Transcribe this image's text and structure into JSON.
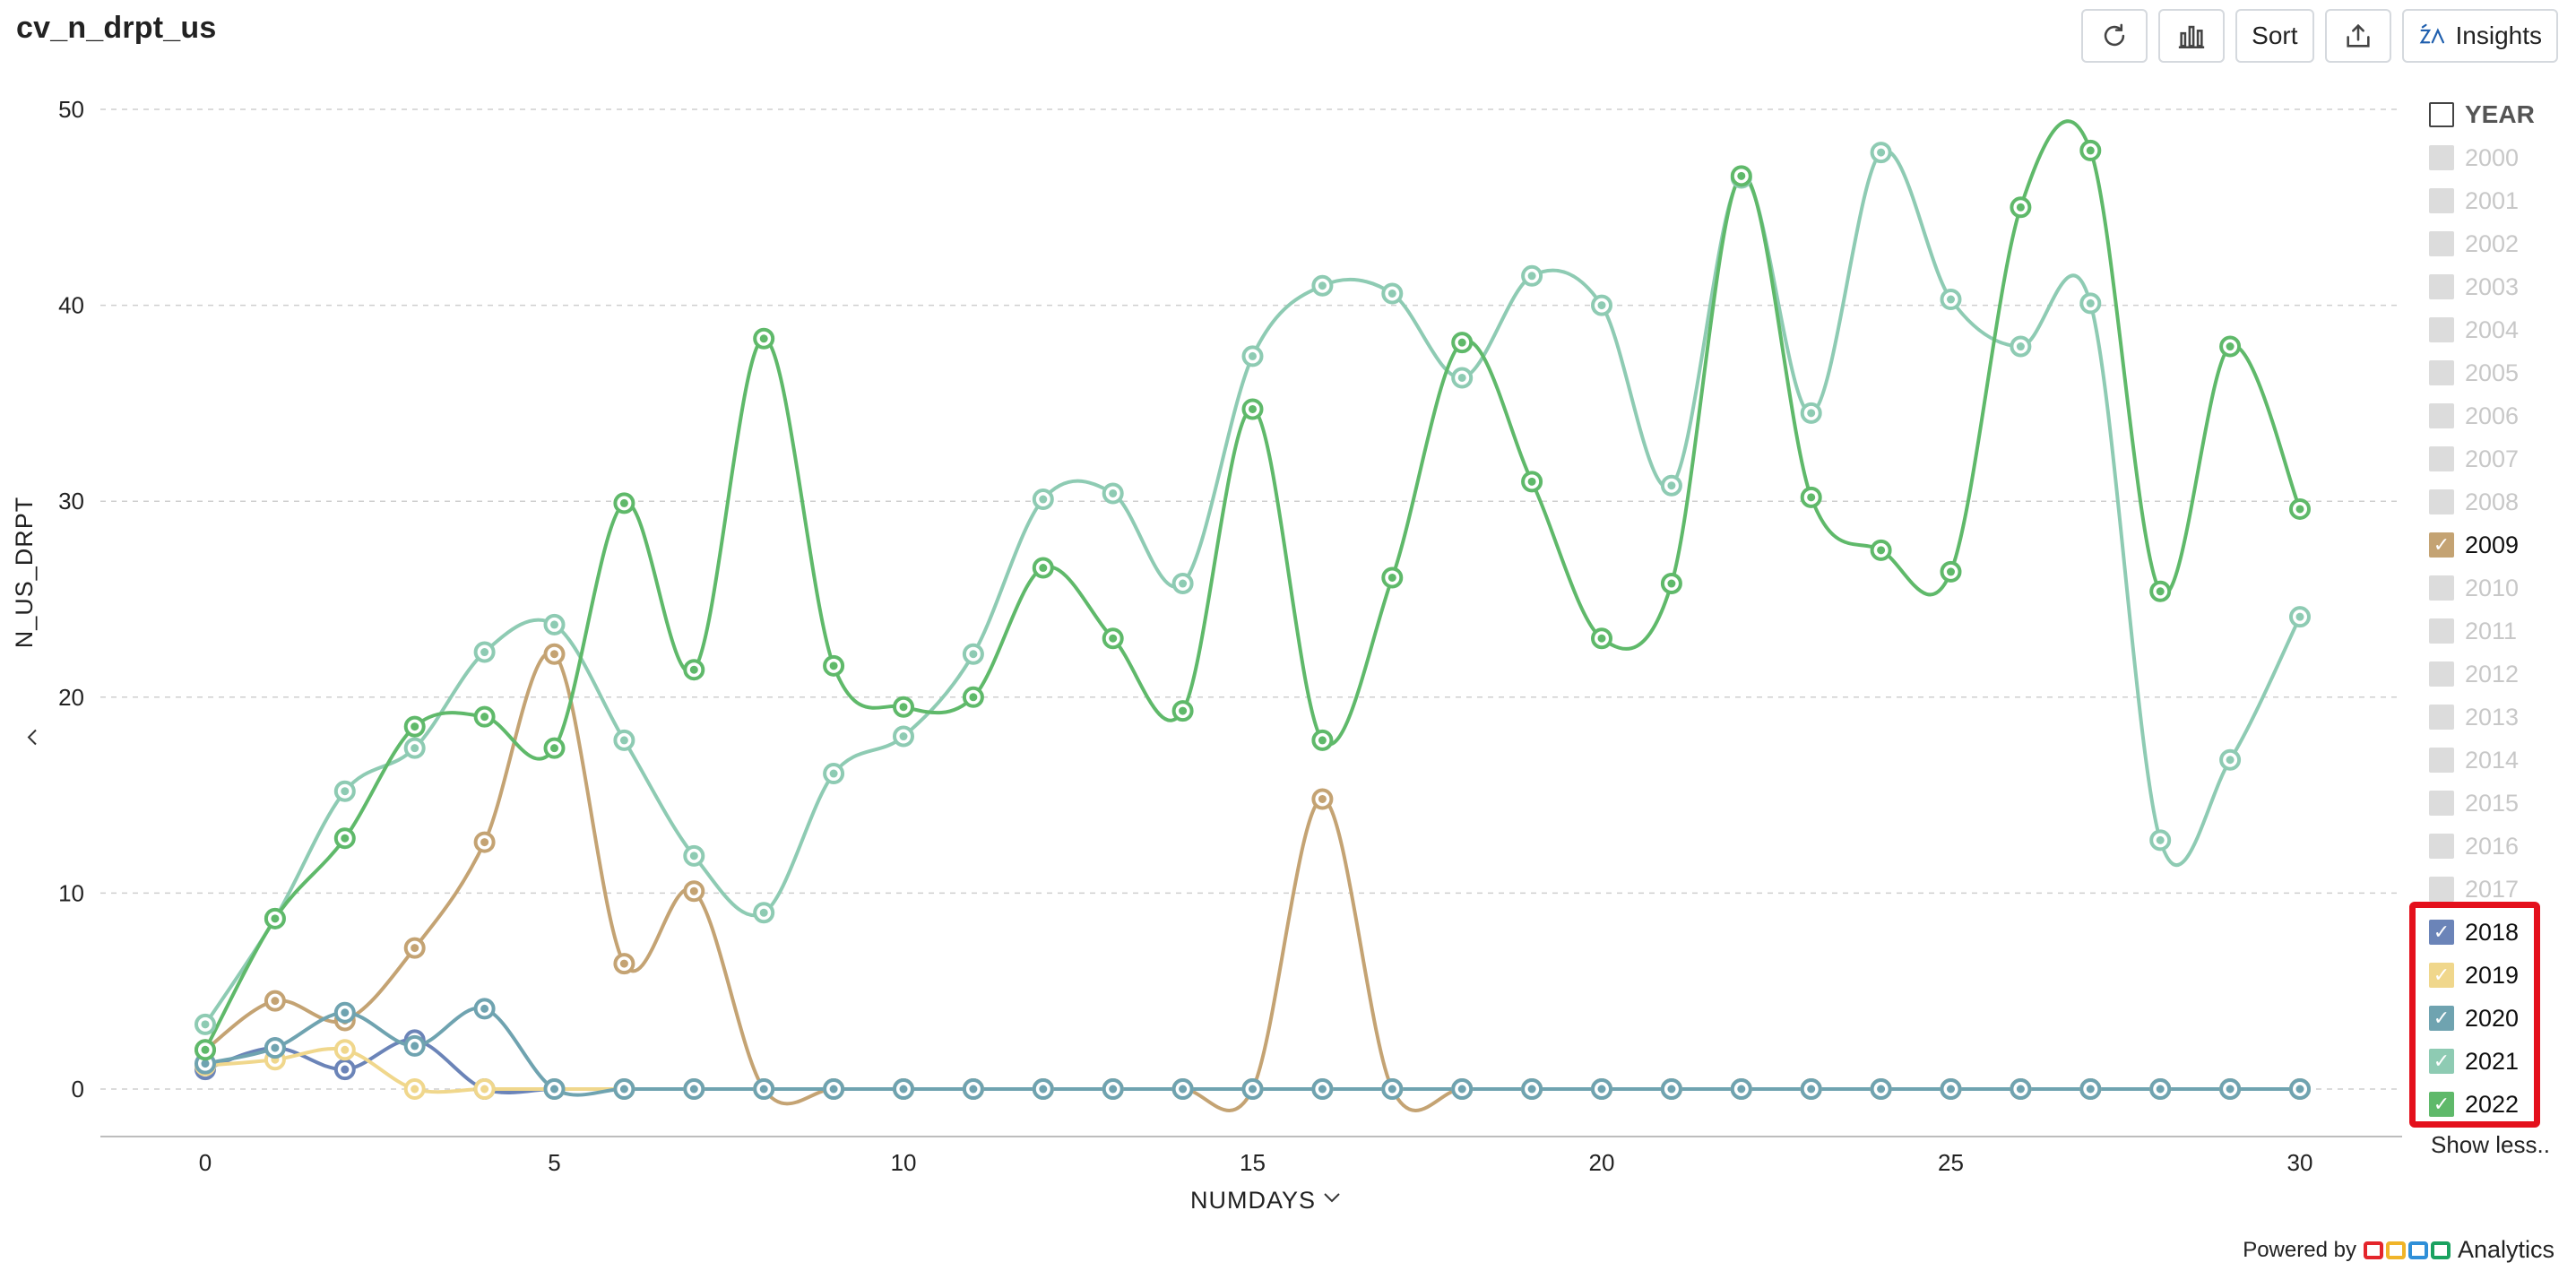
{
  "header": {
    "title": "cv_n_drpt_us",
    "buttons": {
      "sort_label": "Sort",
      "insights_label": "Insights"
    }
  },
  "icons": [
    "refresh-icon",
    "bar-chart-icon",
    "export-icon",
    "insights-icon",
    "chevron-down-icon",
    "checkmark-icon"
  ],
  "chart_data": {
    "type": "line",
    "xlabel": "NUMDAYS",
    "ylabel": "N_US_DRPT",
    "xlim": [
      0,
      30
    ],
    "ylim": [
      0,
      50
    ],
    "x_ticks": [
      0,
      5,
      10,
      15,
      20,
      25,
      30
    ],
    "y_ticks": [
      0,
      10,
      20,
      30,
      40,
      50
    ],
    "grid": true,
    "legend_placement": "right",
    "x": [
      0,
      1,
      2,
      3,
      4,
      5,
      6,
      7,
      8,
      9,
      10,
      11,
      12,
      13,
      14,
      15,
      16,
      17,
      18,
      19,
      20,
      21,
      22,
      23,
      24,
      25,
      26,
      27,
      28,
      29,
      30
    ],
    "series": [
      {
        "name": "2009",
        "color": "#c4a373",
        "values": [
          2,
          4.5,
          3.5,
          7.2,
          12.6,
          22.2,
          6.4,
          10.1,
          0,
          0,
          0,
          0,
          0,
          0,
          0,
          0,
          14.8,
          0,
          0,
          0,
          0,
          0,
          0,
          0,
          0,
          0,
          0,
          0,
          0,
          0,
          0
        ]
      },
      {
        "name": "2018",
        "color": "#6b84b8",
        "values": [
          1,
          2.1,
          1,
          2.5,
          0,
          0,
          0,
          0,
          0,
          0,
          0,
          0,
          0,
          0,
          0,
          0,
          0,
          0,
          0,
          0,
          0,
          0,
          0,
          0,
          0,
          0,
          0,
          0,
          0,
          0,
          0
        ]
      },
      {
        "name": "2019",
        "color": "#f0d78c",
        "values": [
          1.2,
          1.5,
          2,
          0,
          0,
          0,
          0,
          0,
          0,
          0,
          0,
          0,
          0,
          0,
          0,
          0,
          0,
          0,
          0,
          0,
          0,
          0,
          0,
          0,
          0,
          0,
          0,
          0,
          0,
          0,
          0
        ]
      },
      {
        "name": "2020",
        "color": "#6fa3b0",
        "values": [
          1.3,
          2.1,
          3.9,
          2.2,
          4.1,
          0,
          0,
          0,
          0,
          0,
          0,
          0,
          0,
          0,
          0,
          0,
          0,
          0,
          0,
          0,
          0,
          0,
          0,
          0,
          0,
          0,
          0,
          0,
          0,
          0,
          0
        ]
      },
      {
        "name": "2021",
        "color": "#8ecbb3",
        "values": [
          3.3,
          8.7,
          15.2,
          17.4,
          22.3,
          23.7,
          17.8,
          11.9,
          9,
          16.1,
          18,
          22.2,
          30.1,
          30.4,
          25.8,
          37.4,
          41,
          40.6,
          36.3,
          41.5,
          40,
          30.8,
          46.5,
          34.5,
          47.8,
          40.3,
          37.9,
          40.1,
          12.7,
          16.8,
          24.1
        ]
      },
      {
        "name": "2022",
        "color": "#5fb96a",
        "values": [
          2,
          8.7,
          12.8,
          18.5,
          19,
          17.4,
          29.9,
          21.4,
          38.3,
          21.6,
          19.5,
          20,
          26.6,
          23,
          19.3,
          34.7,
          17.8,
          26.1,
          38.1,
          31,
          23,
          25.8,
          46.6,
          30.2,
          27.5,
          26.4,
          45,
          47.9,
          25.4,
          37.9,
          29.6
        ]
      }
    ]
  },
  "legend": {
    "header": "YEAR",
    "items": [
      {
        "label": "2000",
        "checked": false,
        "color": ""
      },
      {
        "label": "2001",
        "checked": false,
        "color": ""
      },
      {
        "label": "2002",
        "checked": false,
        "color": ""
      },
      {
        "label": "2003",
        "checked": false,
        "color": ""
      },
      {
        "label": "2004",
        "checked": false,
        "color": ""
      },
      {
        "label": "2005",
        "checked": false,
        "color": ""
      },
      {
        "label": "2006",
        "checked": false,
        "color": ""
      },
      {
        "label": "2007",
        "checked": false,
        "color": ""
      },
      {
        "label": "2008",
        "checked": false,
        "color": ""
      },
      {
        "label": "2009",
        "checked": true,
        "color": "#c4a373"
      },
      {
        "label": "2010",
        "checked": false,
        "color": ""
      },
      {
        "label": "2011",
        "checked": false,
        "color": ""
      },
      {
        "label": "2012",
        "checked": false,
        "color": ""
      },
      {
        "label": "2013",
        "checked": false,
        "color": ""
      },
      {
        "label": "2014",
        "checked": false,
        "color": ""
      },
      {
        "label": "2015",
        "checked": false,
        "color": ""
      },
      {
        "label": "2016",
        "checked": false,
        "color": ""
      },
      {
        "label": "2017",
        "checked": false,
        "color": ""
      },
      {
        "label": "2018",
        "checked": true,
        "color": "#6b84b8"
      },
      {
        "label": "2019",
        "checked": true,
        "color": "#f0d78c"
      },
      {
        "label": "2020",
        "checked": true,
        "color": "#6fa3b0"
      },
      {
        "label": "2021",
        "checked": true,
        "color": "#8ecbb3"
      },
      {
        "label": "2022",
        "checked": true,
        "color": "#5fb96a"
      }
    ],
    "show_less_label": "Show less.."
  },
  "footer": {
    "powered_by": "Powered by",
    "brand": "Analytics",
    "logo_colors": [
      "#e4252b",
      "#f0b429",
      "#2f8fd8",
      "#1aa260"
    ]
  }
}
